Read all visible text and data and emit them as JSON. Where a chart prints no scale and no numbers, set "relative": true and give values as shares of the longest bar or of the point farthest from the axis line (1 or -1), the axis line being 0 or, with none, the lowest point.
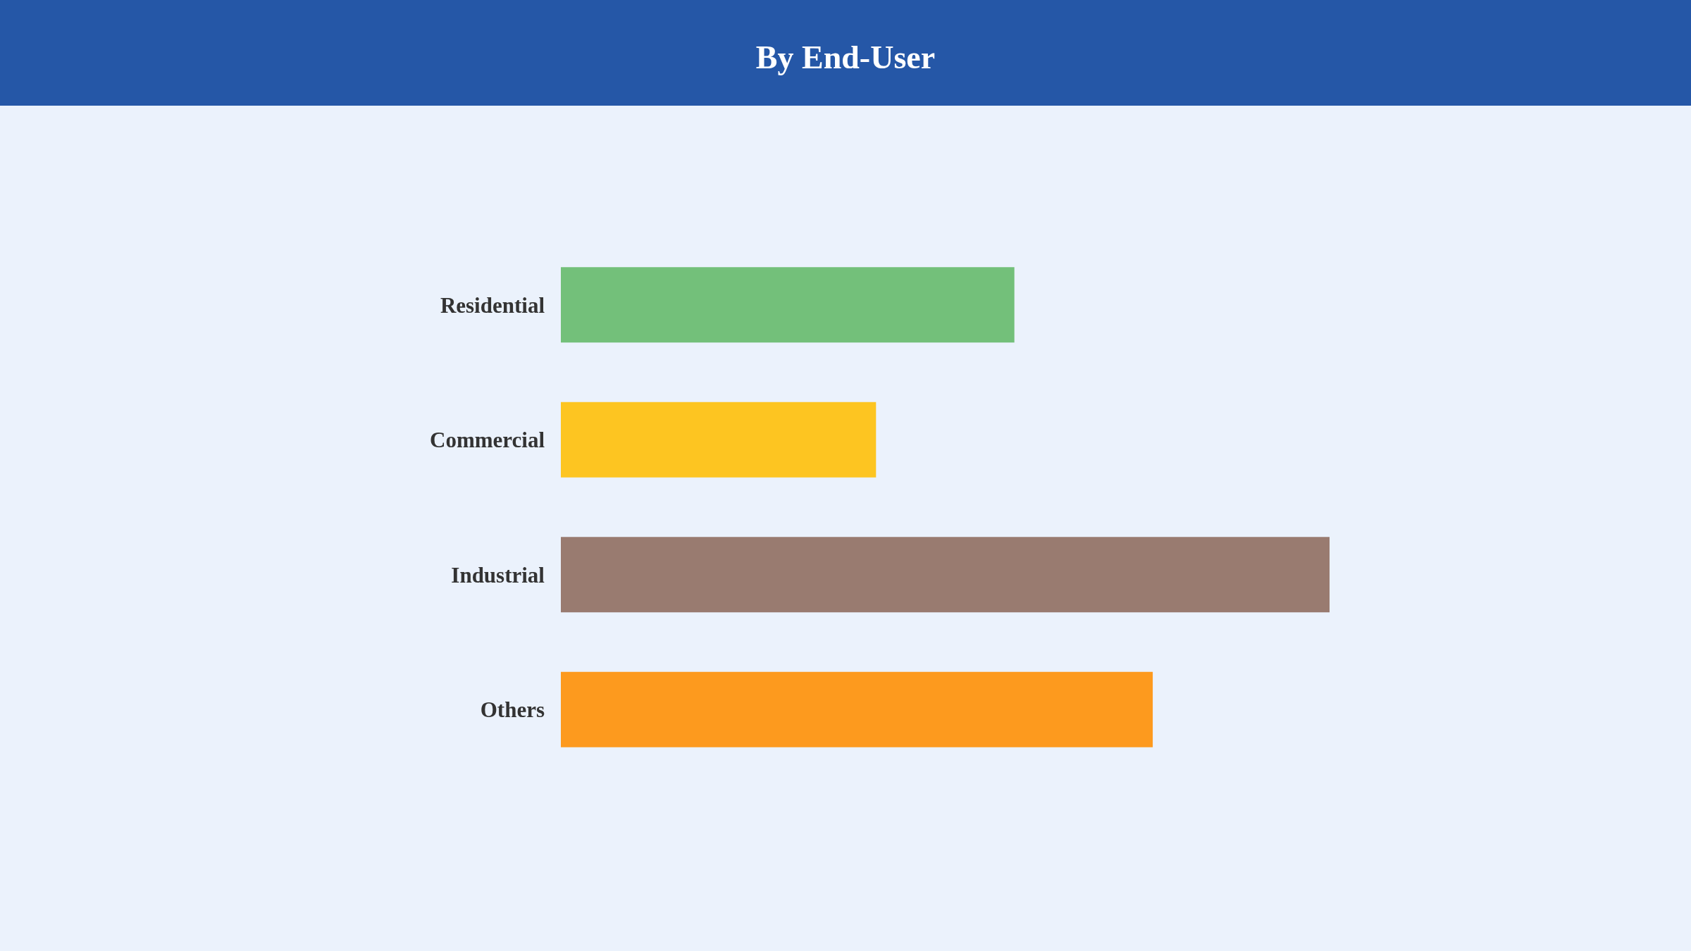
{
  "chart_data": {
    "type": "bar",
    "title": "By End-User",
    "orientation": "horizontal",
    "relative": true,
    "categories": [
      "Residential",
      "Commercial",
      "Industrial",
      "Others"
    ],
    "values": [
      0.59,
      0.41,
      1,
      0.77
    ],
    "colors": [
      "#73c07a",
      "#fdc521",
      "#997b70",
      "#fd9a1e"
    ]
  }
}
